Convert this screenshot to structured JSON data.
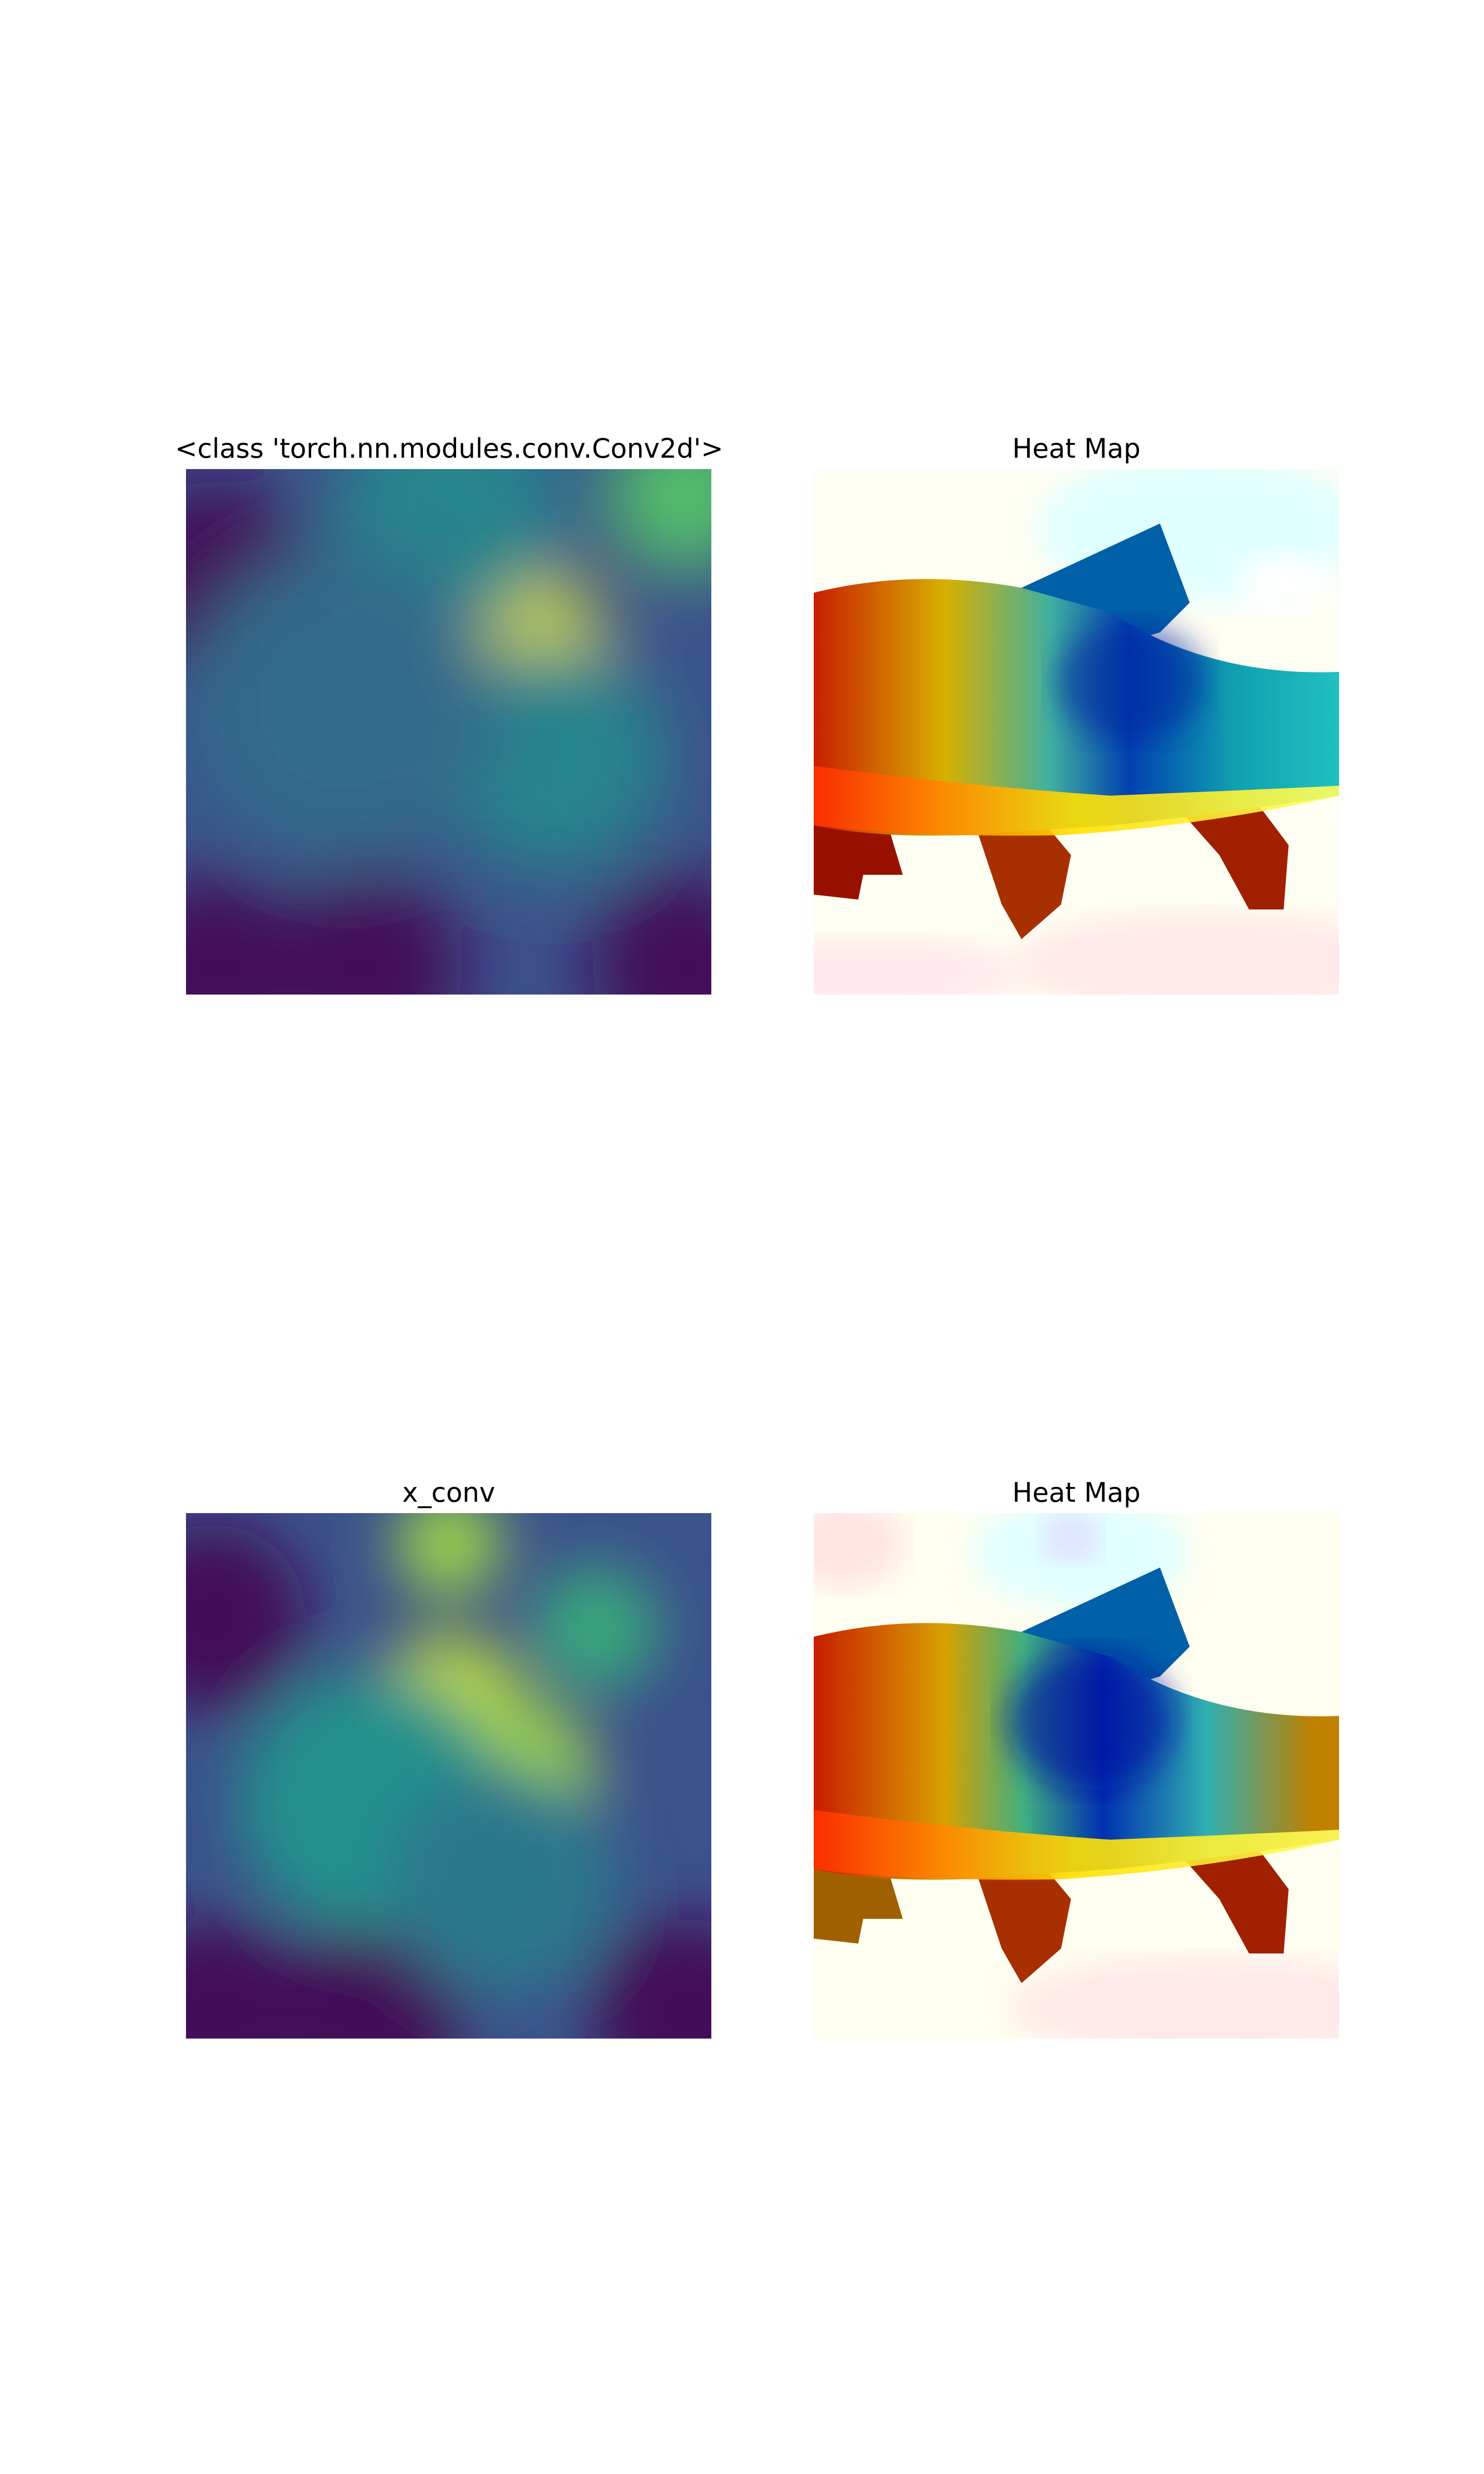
{
  "chart_data": [
    {
      "type": "heatmap",
      "title": "<class 'torch.nn.modules.conv.Conv2d'>",
      "colormap": "viridis",
      "axes": "off",
      "hotspots": [
        {
          "x": 0.64,
          "y": 0.35,
          "intensity": 0.95,
          "spread": 0.16
        },
        {
          "x": 0.95,
          "y": 0.05,
          "intensity": 0.7,
          "spread": 0.15
        },
        {
          "x": 0.5,
          "y": 0.08,
          "intensity": 0.45,
          "spread": 0.22
        },
        {
          "x": 0.7,
          "y": 0.55,
          "intensity": 0.45,
          "spread": 0.22
        },
        {
          "x": 0.3,
          "y": 0.45,
          "intensity": 0.35,
          "spread": 0.3
        }
      ]
    },
    {
      "type": "heatmap",
      "title": "Heat Map",
      "colormap": "jet",
      "overlay": "fish-image"
    },
    {
      "type": "heatmap",
      "title": "x_conv",
      "colormap": "viridis",
      "axes": "off",
      "hotspots": [
        {
          "x": 0.5,
          "y": 0.06,
          "intensity": 0.85,
          "spread": 0.1
        },
        {
          "x": 0.5,
          "y": 0.38,
          "intensity": 0.9,
          "spread": 0.15
        },
        {
          "x": 0.64,
          "y": 0.5,
          "intensity": 0.85,
          "spread": 0.14
        },
        {
          "x": 0.78,
          "y": 0.22,
          "intensity": 0.6,
          "spread": 0.12
        },
        {
          "x": 0.35,
          "y": 0.55,
          "intensity": 0.5,
          "spread": 0.25
        },
        {
          "x": 0.6,
          "y": 0.7,
          "intensity": 0.4,
          "spread": 0.22
        }
      ]
    },
    {
      "type": "heatmap",
      "title": "Heat Map",
      "colormap": "jet",
      "overlay": "fish-image"
    }
  ]
}
